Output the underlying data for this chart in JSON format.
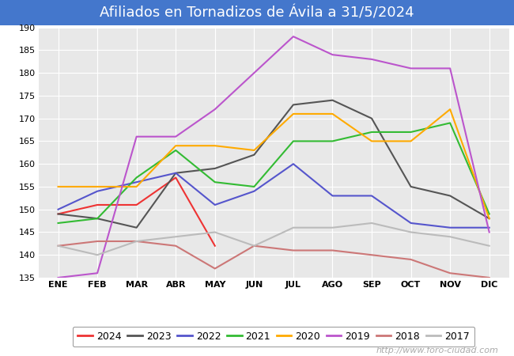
{
  "title": "Afiliados en Tornadizos de Ávila a 31/5/2024",
  "title_color": "white",
  "title_bg_color": "#4477cc",
  "xlabel": "",
  "ylabel": "",
  "ylim": [
    135,
    190
  ],
  "yticks": [
    135,
    140,
    145,
    150,
    155,
    160,
    165,
    170,
    175,
    180,
    185,
    190
  ],
  "months": [
    "ENE",
    "FEB",
    "MAR",
    "ABR",
    "MAY",
    "JUN",
    "JUL",
    "AGO",
    "SEP",
    "OCT",
    "NOV",
    "DIC"
  ],
  "watermark": "http://www.foro-ciudad.com",
  "series": {
    "2024": {
      "color": "#ee3333",
      "data": [
        149,
        151,
        151,
        157,
        142,
        null,
        null,
        null,
        null,
        null,
        null,
        null
      ]
    },
    "2023": {
      "color": "#555555",
      "data": [
        149,
        148,
        146,
        158,
        159,
        162,
        173,
        174,
        170,
        155,
        153,
        148
      ]
    },
    "2022": {
      "color": "#5555cc",
      "data": [
        150,
        154,
        156,
        158,
        151,
        154,
        160,
        153,
        153,
        147,
        146,
        146
      ]
    },
    "2021": {
      "color": "#33bb33",
      "data": [
        147,
        148,
        157,
        163,
        156,
        155,
        165,
        165,
        167,
        167,
        169,
        149
      ]
    },
    "2020": {
      "color": "#ffaa00",
      "data": [
        155,
        155,
        155,
        164,
        164,
        163,
        171,
        171,
        165,
        165,
        172,
        148
      ]
    },
    "2019": {
      "color": "#bb55cc",
      "data": [
        135,
        136,
        166,
        166,
        172,
        180,
        188,
        184,
        183,
        181,
        181,
        145
      ]
    },
    "2018": {
      "color": "#cc7777",
      "data": [
        142,
        143,
        143,
        142,
        137,
        142,
        141,
        141,
        140,
        139,
        136,
        135
      ]
    },
    "2017": {
      "color": "#bbbbbb",
      "data": [
        142,
        140,
        143,
        144,
        145,
        142,
        146,
        146,
        147,
        145,
        144,
        142
      ]
    }
  },
  "legend_order": [
    "2024",
    "2023",
    "2022",
    "2021",
    "2020",
    "2019",
    "2018",
    "2017"
  ],
  "bg_color": "#ffffff",
  "plot_bg_color": "#e8e8e8",
  "grid_color": "#ffffff",
  "fontsize_title": 13,
  "fontsize_ticks": 8,
  "fontsize_legend": 9,
  "fontsize_watermark": 8
}
